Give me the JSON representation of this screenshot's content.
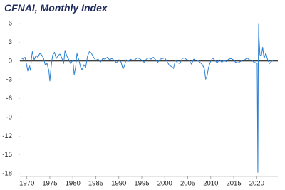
{
  "chart_data": {
    "type": "line",
    "title": "CFNAI, Monthly Index",
    "x": [
      1968.8,
      1969.2,
      1969.6,
      1970.0,
      1970.2,
      1970.5,
      1970.8,
      1971.0,
      1971.2,
      1971.6,
      1972.0,
      1972.4,
      1972.8,
      1973.2,
      1973.6,
      1974.0,
      1974.4,
      1974.8,
      1975.0,
      1975.3,
      1975.6,
      1976.0,
      1976.4,
      1976.8,
      1977.2,
      1977.6,
      1978.0,
      1978.3,
      1978.7,
      1979.0,
      1979.5,
      1980.0,
      1980.3,
      1980.6,
      1980.9,
      1981.3,
      1981.7,
      1982.0,
      1982.4,
      1982.8,
      1983.2,
      1983.6,
      1984.0,
      1984.5,
      1985.0,
      1985.5,
      1986.0,
      1986.5,
      1987.0,
      1987.5,
      1988.0,
      1988.5,
      1989.0,
      1989.5,
      1990.0,
      1990.5,
      1990.9,
      1991.2,
      1991.6,
      1992.0,
      1992.5,
      1993.0,
      1993.5,
      1994.0,
      1994.5,
      1995.0,
      1995.5,
      1996.0,
      1996.5,
      1997.0,
      1997.5,
      1998.0,
      1998.5,
      1999.0,
      1999.5,
      2000.0,
      2000.5,
      2001.0,
      2001.5,
      2001.9,
      2002.3,
      2002.8,
      2003.3,
      2003.8,
      2004.3,
      2004.8,
      2005.3,
      2005.8,
      2006.3,
      2006.8,
      2007.3,
      2007.8,
      2008.2,
      2008.6,
      2008.9,
      2009.2,
      2009.5,
      2009.9,
      2010.4,
      2010.9,
      2011.4,
      2011.9,
      2012.4,
      2012.9,
      2013.4,
      2013.9,
      2014.4,
      2014.9,
      2015.4,
      2015.9,
      2016.4,
      2016.9,
      2017.4,
      2017.9,
      2018.4,
      2018.9,
      2019.4,
      2019.9,
      2020.1,
      2020.25,
      2020.33,
      2020.42,
      2020.5,
      2020.7,
      2021.0,
      2021.3,
      2021.6,
      2022.0,
      2022.4,
      2022.8,
      2023.2,
      2023.6
    ],
    "series": [
      {
        "color": "#2a7fd4",
        "values": [
          0.5,
          0.3,
          0.6,
          -0.8,
          -1.6,
          -0.7,
          -1.5,
          0.4,
          1.5,
          0.2,
          0.9,
          0.6,
          1.2,
          1.0,
          0.5,
          -0.6,
          -0.4,
          -1.6,
          -3.2,
          -0.8,
          0.9,
          1.4,
          0.4,
          0.9,
          1.1,
          0.5,
          -0.4,
          1.7,
          0.8,
          0.4,
          -0.4,
          0.1,
          -2.2,
          -1.0,
          1.2,
          0.2,
          -1.0,
          -1.4,
          -0.6,
          -1.0,
          0.8,
          1.5,
          1.3,
          0.6,
          0.1,
          0.3,
          -0.2,
          0.4,
          0.3,
          0.6,
          0.2,
          0.4,
          0.1,
          -0.3,
          0.2,
          -0.2,
          -1.3,
          -0.8,
          0.2,
          -0.1,
          0.3,
          0.1,
          0.2,
          0.5,
          0.4,
          0.1,
          -0.2,
          0.3,
          0.5,
          0.3,
          0.6,
          0.2,
          -0.2,
          0.3,
          0.4,
          0.5,
          -0.1,
          -0.7,
          -0.9,
          -1.2,
          0.1,
          -0.3,
          -0.4,
          0.4,
          0.5,
          0.2,
          0.1,
          -0.5,
          0.3,
          0.1,
          0.0,
          -0.3,
          -0.6,
          -1.2,
          -2.9,
          -2.4,
          -1.1,
          -0.2,
          0.5,
          0.1,
          -0.3,
          0.2,
          -0.2,
          0.1,
          -0.1,
          0.3,
          0.4,
          0.2,
          -0.2,
          -0.3,
          -0.1,
          0.1,
          0.2,
          0.5,
          0.2,
          0.1,
          -0.2,
          -0.3,
          -0.4,
          -17.8,
          -1.5,
          5.9,
          3.8,
          1.0,
          0.8,
          2.2,
          0.4,
          1.3,
          0.1,
          -0.4,
          -0.1,
          0.1
        ]
      }
    ],
    "xlim": [
      1968.5,
      2024.6
    ],
    "xticks": [
      1970,
      1975,
      1980,
      1985,
      1990,
      1995,
      2000,
      2005,
      2010,
      2015,
      2020
    ],
    "ylim": [
      -18,
      6
    ],
    "yticks": [
      6,
      3,
      0,
      -3,
      -6,
      -9,
      -12,
      -15,
      -18
    ],
    "zero_line": true
  }
}
